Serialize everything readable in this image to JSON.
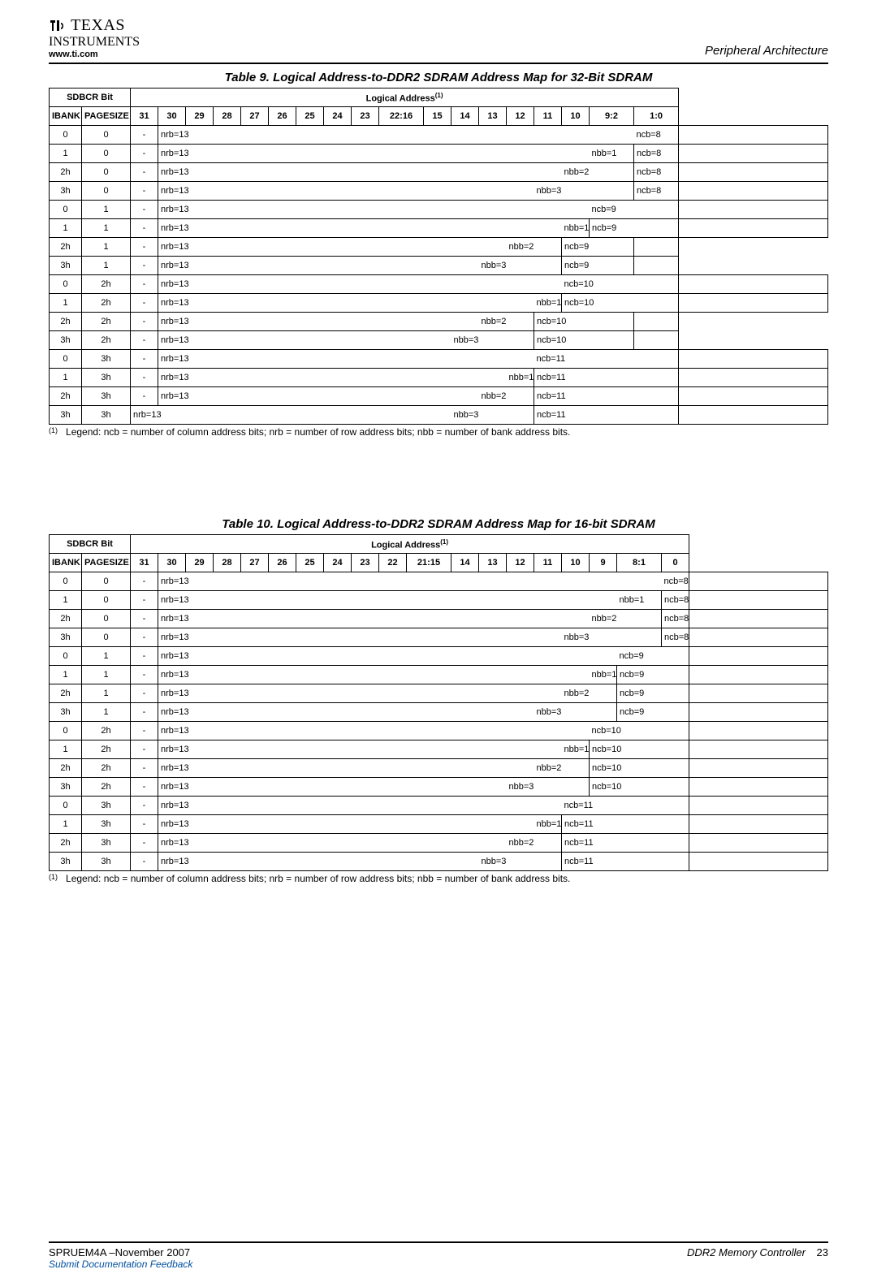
{
  "header": {
    "brand_top": "TEXAS",
    "brand_bottom": "INSTRUMENTS",
    "url": "www.ti.com",
    "section": "Peripheral Architecture"
  },
  "table9": {
    "title": "Table 9. Logical Address-to-DDR2 SDRAM Address Map for 32-Bit SDRAM",
    "sdbcr_label": "SDBCR Bit",
    "logaddr_label": "Logical Address",
    "logaddr_sup": "(1)",
    "headers": [
      "IBANK",
      "PAGESIZE",
      "31",
      "30",
      "29",
      "28",
      "27",
      "26",
      "25",
      "24",
      "23",
      "22:16",
      "15",
      "14",
      "13",
      "12",
      "11",
      "10",
      "9:2",
      "1:0"
    ],
    "rows": [
      {
        "ibank": "0",
        "pagesize": "0",
        "cells": [
          {
            "txt": "-",
            "span": 1
          },
          {
            "txt": "nrb=13",
            "span": 8,
            "nolr": true
          },
          {
            "txt": "",
            "span": 8,
            "nolr": true
          },
          {
            "txt": "ncb=8",
            "span": 1
          },
          {
            "txt": "",
            "span": 1
          }
        ]
      },
      {
        "ibank": "1",
        "pagesize": "0",
        "cells": [
          {
            "txt": "-",
            "span": 1
          },
          {
            "txt": "nrb=13",
            "span": 7,
            "nolr": true
          },
          {
            "txt": "",
            "span": 8,
            "nolr": true
          },
          {
            "txt": "nbb=1",
            "span": 1
          },
          {
            "txt": "ncb=8",
            "span": 1
          },
          {
            "txt": "",
            "span": 1
          }
        ]
      },
      {
        "ibank": "2h",
        "pagesize": "0",
        "cells": [
          {
            "txt": "-",
            "span": 1
          },
          {
            "txt": "nrb=13",
            "span": 8,
            "nolr": true
          },
          {
            "txt": "",
            "span": 6,
            "nolr": true
          },
          {
            "txt": "nbb=2",
            "span": 2
          },
          {
            "txt": "ncb=8",
            "span": 1
          },
          {
            "txt": "",
            "span": 1
          }
        ]
      },
      {
        "ibank": "3h",
        "pagesize": "0",
        "cells": [
          {
            "txt": "-",
            "span": 1
          },
          {
            "txt": "nrb=13",
            "span": 6,
            "nolr": true
          },
          {
            "txt": "",
            "span": 7,
            "nolr": true
          },
          {
            "txt": "nbb=3",
            "span": 3
          },
          {
            "txt": "ncb=8",
            "span": 1
          },
          {
            "txt": "",
            "span": 1
          }
        ]
      },
      {
        "ibank": "0",
        "pagesize": "1",
        "cells": [
          {
            "txt": "-",
            "span": 1
          },
          {
            "txt": "nrb=13",
            "span": 8,
            "nolr": true
          },
          {
            "txt": "",
            "span": 7,
            "nolr": true
          },
          {
            "txt": "ncb=9",
            "span": 2
          },
          {
            "txt": "",
            "span": 1
          }
        ]
      },
      {
        "ibank": "1",
        "pagesize": "1",
        "cells": [
          {
            "txt": "-",
            "span": 1
          },
          {
            "txt": "nrb=13",
            "span": 7,
            "nolr": true
          },
          {
            "txt": "",
            "span": 7,
            "nolr": true
          },
          {
            "txt": "nbb=1",
            "span": 1
          },
          {
            "txt": "ncb=9",
            "span": 2
          },
          {
            "txt": "",
            "span": 1
          }
        ]
      },
      {
        "ibank": "2h",
        "pagesize": "1",
        "cells": [
          {
            "txt": "-",
            "span": 1
          },
          {
            "txt": "nrb=13",
            "span": 6,
            "nolr": true
          },
          {
            "txt": "",
            "span": 6,
            "nolr": true
          },
          {
            "txt": "nbb=2",
            "span": 2
          },
          {
            "txt": "ncb=9",
            "span": 2
          },
          {
            "txt": "",
            "span": 1
          }
        ]
      },
      {
        "ibank": "3h",
        "pagesize": "1",
        "cells": [
          {
            "txt": "-",
            "span": 1
          },
          {
            "txt": "nrb=13",
            "span": 5,
            "nolr": true
          },
          {
            "txt": "",
            "span": 6,
            "nolr": true
          },
          {
            "txt": "nbb=3",
            "span": 3
          },
          {
            "txt": "ncb=9",
            "span": 2
          },
          {
            "txt": "",
            "span": 1
          }
        ]
      },
      {
        "ibank": "0",
        "pagesize": "2h",
        "cells": [
          {
            "txt": "-",
            "span": 1
          },
          {
            "txt": "nrb=13",
            "span": 8,
            "nolr": true
          },
          {
            "txt": "",
            "span": 6,
            "nolr": true
          },
          {
            "txt": "ncb=10",
            "span": 3
          },
          {
            "txt": "",
            "span": 1
          }
        ]
      },
      {
        "ibank": "1",
        "pagesize": "2h",
        "cells": [
          {
            "txt": "-",
            "span": 1
          },
          {
            "txt": "nrb=13",
            "span": 6,
            "nolr": true
          },
          {
            "txt": "",
            "span": 7,
            "nolr": true
          },
          {
            "txt": "nbb=1",
            "span": 1
          },
          {
            "txt": "ncb=10",
            "span": 3
          },
          {
            "txt": "",
            "span": 1
          }
        ]
      },
      {
        "ibank": "2h",
        "pagesize": "2h",
        "cells": [
          {
            "txt": "-",
            "span": 1
          },
          {
            "txt": "nrb=13",
            "span": 5,
            "nolr": true
          },
          {
            "txt": "",
            "span": 6,
            "nolr": true
          },
          {
            "txt": "nbb=2",
            "span": 2
          },
          {
            "txt": "ncb=10",
            "span": 3
          },
          {
            "txt": "",
            "span": 1
          }
        ]
      },
      {
        "ibank": "3h",
        "pagesize": "2h",
        "cells": [
          {
            "txt": "-",
            "span": 1
          },
          {
            "txt": "nrb=13",
            "span": 4,
            "nolr": true
          },
          {
            "txt": "",
            "span": 6,
            "nolr": true
          },
          {
            "txt": "nbb=3",
            "span": 3
          },
          {
            "txt": "ncb=10",
            "span": 3
          },
          {
            "txt": "",
            "span": 1
          }
        ]
      },
      {
        "ibank": "0",
        "pagesize": "3h",
        "cells": [
          {
            "txt": "-",
            "span": 1
          },
          {
            "txt": "nrb=13",
            "span": 6,
            "nolr": true
          },
          {
            "txt": "",
            "span": 7,
            "nolr": true
          },
          {
            "txt": "ncb=11",
            "span": 4
          },
          {
            "txt": "",
            "span": 1
          }
        ]
      },
      {
        "ibank": "1",
        "pagesize": "3h",
        "cells": [
          {
            "txt": "-",
            "span": 1
          },
          {
            "txt": "nrb=13",
            "span": 5,
            "nolr": true
          },
          {
            "txt": "",
            "span": 7,
            "nolr": true
          },
          {
            "txt": "nbb=1",
            "span": 1
          },
          {
            "txt": "ncb=11",
            "span": 4
          },
          {
            "txt": "",
            "span": 1
          }
        ]
      },
      {
        "ibank": "2h",
        "pagesize": "3h",
        "cells": [
          {
            "txt": "-",
            "span": 1
          },
          {
            "txt": "nrb=13",
            "span": 4,
            "nolr": true
          },
          {
            "txt": "",
            "span": 7,
            "nolr": true
          },
          {
            "txt": "nbb=2",
            "span": 2
          },
          {
            "txt": "ncb=11",
            "span": 4
          },
          {
            "txt": "",
            "span": 1
          }
        ]
      },
      {
        "ibank": "3h",
        "pagesize": "3h",
        "cells": [
          {
            "txt": "nrb=13",
            "span": 4,
            "nolr": true
          },
          {
            "txt": "",
            "span": 7,
            "nolr": true
          },
          {
            "txt": "nbb=3",
            "span": 3
          },
          {
            "txt": "ncb=11",
            "span": 4
          },
          {
            "txt": "",
            "span": 1
          }
        ]
      }
    ],
    "footnote_mark": "(1)",
    "footnote_text": "Legend: ncb = number of column address bits; nrb = number of row address bits; nbb = number of bank address bits."
  },
  "table10": {
    "title": "Table 10. Logical Address-to-DDR2 SDRAM Address Map for 16-bit SDRAM",
    "sdbcr_label": "SDBCR Bit",
    "logaddr_label": "Logical Address",
    "logaddr_sup": "(1)",
    "headers": [
      "IBANK",
      "PAGESIZE",
      "31",
      "30",
      "29",
      "28",
      "27",
      "26",
      "25",
      "24",
      "23",
      "22",
      "21:15",
      "14",
      "13",
      "12",
      "11",
      "10",
      "9",
      "8:1",
      "0"
    ],
    "rows": [
      {
        "ibank": "0",
        "pagesize": "0",
        "cells": [
          {
            "txt": "-",
            "span": 1
          },
          {
            "txt": "nrb=13",
            "span": 9,
            "nolr": true
          },
          {
            "txt": "",
            "span": 8,
            "nolr": true
          },
          {
            "txt": "ncb=8",
            "span": 1
          },
          {
            "txt": "",
            "span": 1
          }
        ]
      },
      {
        "ibank": "1",
        "pagesize": "0",
        "cells": [
          {
            "txt": "-",
            "span": 1
          },
          {
            "txt": "nrb=13",
            "span": 8,
            "nolr": true
          },
          {
            "txt": "",
            "span": 8,
            "nolr": true
          },
          {
            "txt": "nbb=1",
            "span": 1
          },
          {
            "txt": "ncb=8",
            "span": 1
          },
          {
            "txt": "",
            "span": 1
          }
        ]
      },
      {
        "ibank": "2h",
        "pagesize": "0",
        "cells": [
          {
            "txt": "-",
            "span": 1
          },
          {
            "txt": "nrb=13",
            "span": 8,
            "nolr": true
          },
          {
            "txt": "",
            "span": 7,
            "nolr": true
          },
          {
            "txt": "nbb=2",
            "span": 2
          },
          {
            "txt": "ncb=8",
            "span": 1
          },
          {
            "txt": "",
            "span": 1
          }
        ]
      },
      {
        "ibank": "3h",
        "pagesize": "0",
        "cells": [
          {
            "txt": "-",
            "span": 1
          },
          {
            "txt": "nrb=13",
            "span": 7,
            "nolr": true
          },
          {
            "txt": "",
            "span": 7,
            "nolr": true
          },
          {
            "txt": "nbb=3",
            "span": 3
          },
          {
            "txt": "ncb=8",
            "span": 1
          },
          {
            "txt": "",
            "span": 1
          }
        ]
      },
      {
        "ibank": "0",
        "pagesize": "1",
        "cells": [
          {
            "txt": "-",
            "span": 1
          },
          {
            "txt": "nrb=13",
            "span": 9,
            "nolr": true
          },
          {
            "txt": "",
            "span": 7,
            "nolr": true
          },
          {
            "txt": "ncb=9",
            "span": 2
          },
          {
            "txt": "",
            "span": 1
          }
        ]
      },
      {
        "ibank": "1",
        "pagesize": "1",
        "cells": [
          {
            "txt": "-",
            "span": 1
          },
          {
            "txt": "nrb=13",
            "span": 8,
            "nolr": true
          },
          {
            "txt": "",
            "span": 7,
            "nolr": true
          },
          {
            "txt": "nbb=1",
            "span": 1
          },
          {
            "txt": "ncb=9",
            "span": 2
          },
          {
            "txt": "",
            "span": 1
          }
        ]
      },
      {
        "ibank": "2h",
        "pagesize": "1",
        "cells": [
          {
            "txt": "-",
            "span": 1
          },
          {
            "txt": "nrb=13",
            "span": 7,
            "nolr": true
          },
          {
            "txt": "",
            "span": 7,
            "nolr": true
          },
          {
            "txt": "nbb=2",
            "span": 2
          },
          {
            "txt": "ncb=9",
            "span": 2
          },
          {
            "txt": "",
            "span": 1
          }
        ]
      },
      {
        "ibank": "3h",
        "pagesize": "1",
        "cells": [
          {
            "txt": "-",
            "span": 1
          },
          {
            "txt": "nrb=13",
            "span": 6,
            "nolr": true
          },
          {
            "txt": "",
            "span": 7,
            "nolr": true
          },
          {
            "txt": "nbb=3",
            "span": 3
          },
          {
            "txt": "ncb=9",
            "span": 2
          },
          {
            "txt": "",
            "span": 1
          }
        ]
      },
      {
        "ibank": "0",
        "pagesize": "2h",
        "cells": [
          {
            "txt": "-",
            "span": 1
          },
          {
            "txt": "nrb=13",
            "span": 8,
            "nolr": true
          },
          {
            "txt": "",
            "span": 7,
            "nolr": true
          },
          {
            "txt": "ncb=10",
            "span": 3
          },
          {
            "txt": "",
            "span": 1
          }
        ]
      },
      {
        "ibank": "1",
        "pagesize": "2h",
        "cells": [
          {
            "txt": "-",
            "span": 1
          },
          {
            "txt": "nrb=13",
            "span": 7,
            "nolr": true
          },
          {
            "txt": "",
            "span": 7,
            "nolr": true
          },
          {
            "txt": "nbb=1",
            "span": 1
          },
          {
            "txt": "ncb=10",
            "span": 3
          },
          {
            "txt": "",
            "span": 1
          }
        ]
      },
      {
        "ibank": "2h",
        "pagesize": "2h",
        "cells": [
          {
            "txt": "-",
            "span": 1
          },
          {
            "txt": "nrb=13",
            "span": 6,
            "nolr": true
          },
          {
            "txt": "",
            "span": 7,
            "nolr": true
          },
          {
            "txt": "nbb=2",
            "span": 2
          },
          {
            "txt": "ncb=10",
            "span": 3
          },
          {
            "txt": "",
            "span": 1
          }
        ]
      },
      {
        "ibank": "3h",
        "pagesize": "2h",
        "cells": [
          {
            "txt": "-",
            "span": 1
          },
          {
            "txt": "nrb=13",
            "span": 5,
            "nolr": true
          },
          {
            "txt": "",
            "span": 7,
            "nolr": true
          },
          {
            "txt": "nbb=3",
            "span": 3
          },
          {
            "txt": "ncb=10",
            "span": 3
          },
          {
            "txt": "",
            "span": 1
          }
        ]
      },
      {
        "ibank": "0",
        "pagesize": "3h",
        "cells": [
          {
            "txt": "-",
            "span": 1
          },
          {
            "txt": "nrb=13",
            "span": 7,
            "nolr": true
          },
          {
            "txt": "",
            "span": 7,
            "nolr": true
          },
          {
            "txt": "ncb=11",
            "span": 4
          },
          {
            "txt": "",
            "span": 1
          }
        ]
      },
      {
        "ibank": "1",
        "pagesize": "3h",
        "cells": [
          {
            "txt": "-",
            "span": 1
          },
          {
            "txt": "nrb=13",
            "span": 6,
            "nolr": true
          },
          {
            "txt": "",
            "span": 7,
            "nolr": true
          },
          {
            "txt": "nbb=1",
            "span": 1
          },
          {
            "txt": "ncb=11",
            "span": 4
          },
          {
            "txt": "",
            "span": 1
          }
        ]
      },
      {
        "ibank": "2h",
        "pagesize": "3h",
        "cells": [
          {
            "txt": "-",
            "span": 1
          },
          {
            "txt": "nrb=13",
            "span": 6,
            "nolr": true
          },
          {
            "txt": "",
            "span": 6,
            "nolr": true
          },
          {
            "txt": "nbb=2",
            "span": 2
          },
          {
            "txt": "ncb=11",
            "span": 4
          },
          {
            "txt": "",
            "span": 1
          }
        ]
      },
      {
        "ibank": "3h",
        "pagesize": "3h",
        "cells": [
          {
            "txt": "-",
            "span": 1
          },
          {
            "txt": "nrb=13",
            "span": 5,
            "nolr": true
          },
          {
            "txt": "",
            "span": 6,
            "nolr": true
          },
          {
            "txt": "nbb=3",
            "span": 3
          },
          {
            "txt": "ncb=11",
            "span": 4
          },
          {
            "txt": "",
            "span": 1
          }
        ]
      }
    ],
    "footnote_mark": "(1)",
    "footnote_text": "Legend: ncb = number of column address bits; nrb = number of row address bits; nbb = number of bank address bits."
  },
  "footer": {
    "left": "SPRUEM4A –November 2007",
    "right": "DDR2 Memory Controller",
    "page": "23",
    "feedback": "Submit Documentation Feedback"
  }
}
